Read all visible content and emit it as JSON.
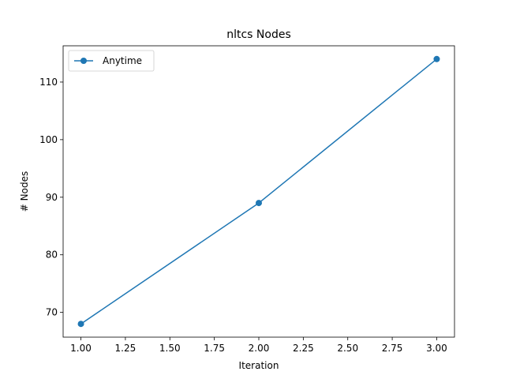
{
  "chart_data": {
    "type": "line",
    "title": "nltcs Nodes",
    "xlabel": "Iteration",
    "ylabel": "# Nodes",
    "xlim": [
      0.9,
      3.1
    ],
    "ylim": [
      65.7,
      116.3
    ],
    "xticks": [
      1.0,
      1.25,
      1.5,
      1.75,
      2.0,
      2.25,
      2.5,
      2.75,
      3.0
    ],
    "xtick_labels": [
      "1.00",
      "1.25",
      "1.50",
      "1.75",
      "2.00",
      "2.25",
      "2.50",
      "2.75",
      "3.00"
    ],
    "yticks": [
      70,
      80,
      90,
      100,
      110
    ],
    "ytick_labels": [
      "70",
      "80",
      "90",
      "100",
      "110"
    ],
    "grid": false,
    "legend": "upper-left",
    "series": [
      {
        "name": "Anytime",
        "color": "#1f77b4",
        "marker": "circle",
        "x": [
          1,
          2,
          3
        ],
        "y": [
          68,
          89,
          114
        ]
      }
    ]
  }
}
